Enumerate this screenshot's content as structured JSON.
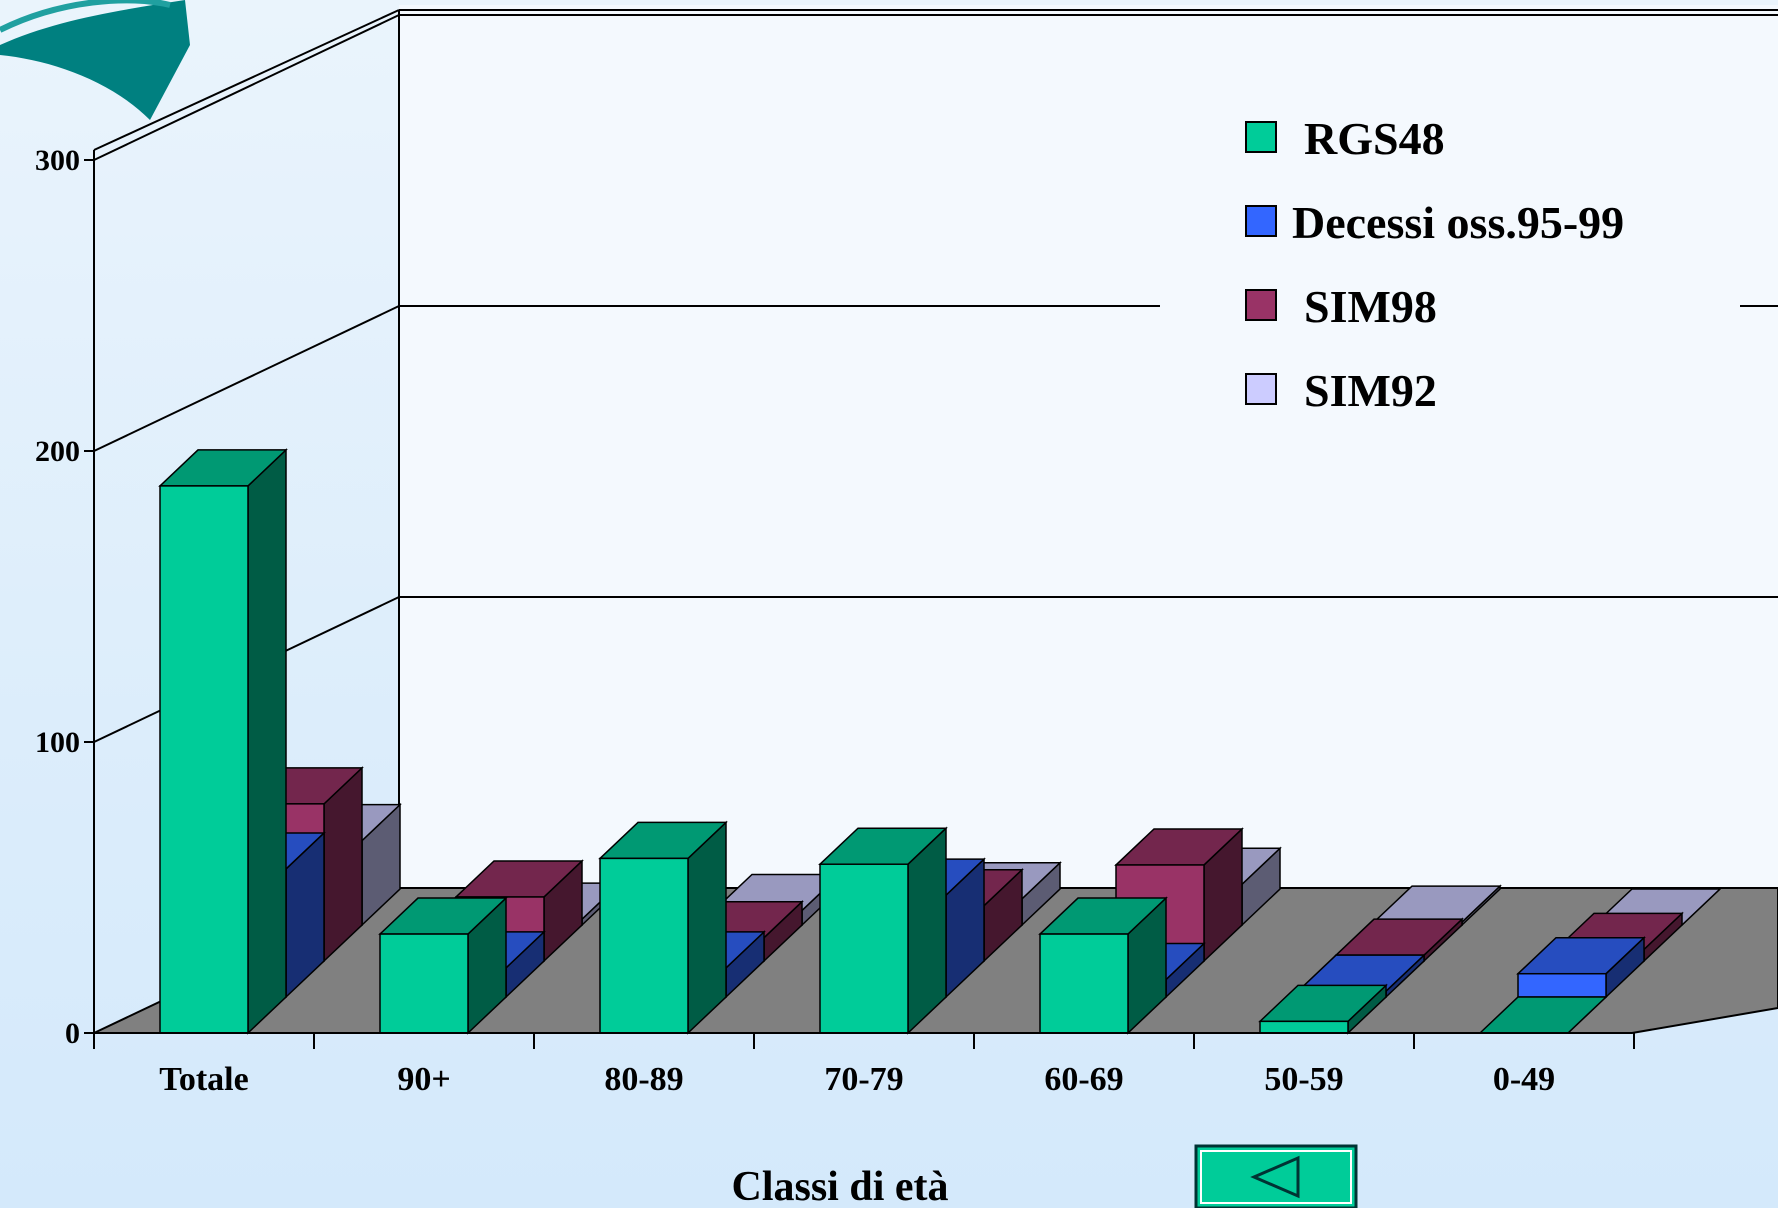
{
  "chart_data": {
    "type": "bar",
    "stacked": true,
    "xlabel": "Classi di età",
    "ylabel": "",
    "ylim": [
      0,
      300
    ],
    "yticks": [
      0,
      100,
      200,
      300
    ],
    "categories": [
      "Totale",
      "90+",
      "80-89",
      "70-79",
      "60-69",
      "50-59",
      "0-49"
    ],
    "series": [
      {
        "name": "RGS48",
        "color": "#00cc99",
        "values": [
          188,
          34,
          60,
          58,
          34,
          4,
          0
        ]
      },
      {
        "name": "Decessi oss.95-99",
        "color": "#3366ff",
        "values": [
          44,
          10,
          10,
          35,
          6,
          2,
          8
        ]
      },
      {
        "name": "SIM98",
        "color": "#993366",
        "values": [
          54,
          22,
          8,
          19,
          33,
          2,
          4
        ]
      },
      {
        "name": "SIM92",
        "color": "#ccccff",
        "values": [
          29,
          2,
          5,
          9,
          14,
          1,
          0
        ]
      }
    ],
    "legend_position": "top-right",
    "grid": true
  },
  "nav": {
    "back_button_icon": "triangle-left-icon"
  },
  "decor": {
    "top_left_shape_color": "#008080"
  }
}
